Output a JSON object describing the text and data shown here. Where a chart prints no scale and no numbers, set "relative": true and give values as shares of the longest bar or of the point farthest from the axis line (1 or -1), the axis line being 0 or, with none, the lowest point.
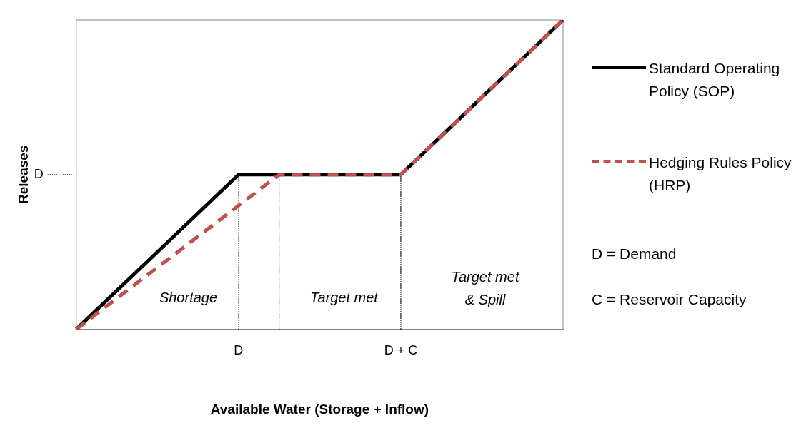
{
  "chart_data": {
    "type": "line",
    "relative": true,
    "xlabel": "Available Water (Storage + Inflow)",
    "ylabel": "Releases",
    "categories": [
      null,
      null,
      null,
      null,
      "D",
      null,
      null,
      null,
      "D + C",
      null,
      null,
      null,
      null
    ],
    "series": [
      {
        "name": "Standard Operating Policy (SOP)",
        "color": "#000000",
        "line_style": "solid",
        "values": [
          0,
          0.125,
          0.25,
          0.375,
          0.5,
          0.5,
          0.5,
          0.5,
          0.5,
          0.625,
          0.75,
          0.875,
          1
        ]
      },
      {
        "name": "Hedging Rules Policy (HRP)",
        "color": "#c0504d",
        "line_style": "dashed",
        "values": [
          0,
          0.1,
          0.2,
          0.3,
          0.4,
          0.5,
          0.5,
          0.5,
          0.5,
          0.625,
          0.75,
          0.875,
          1
        ]
      }
    ],
    "ref_lines": [
      {
        "axis": "y",
        "value": 0.5,
        "label": "D",
        "line_style": "dotted"
      }
    ],
    "annotations": [
      "Shortage",
      "Target met",
      "Target met\n& Spill",
      "D = Demand",
      "C = Reservoir Capacity"
    ],
    "legend": "right",
    "marker": "none"
  }
}
